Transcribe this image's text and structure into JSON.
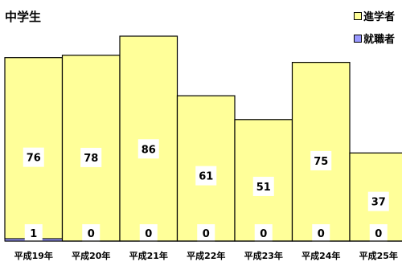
{
  "chart_data": {
    "type": "bar",
    "title": "中学生",
    "categories": [
      "平成19年",
      "平成20年",
      "平成21年",
      "平成22年",
      "平成23年",
      "平成24年",
      "平成25年"
    ],
    "series": [
      {
        "name": "進学者",
        "values": [
          76,
          78,
          86,
          61,
          51,
          75,
          37
        ],
        "color": "#ffff99"
      },
      {
        "name": "就職者",
        "values": [
          1,
          0,
          0,
          0,
          0,
          0,
          0
        ],
        "color": "#9999ff"
      }
    ],
    "stacked": true,
    "ylim": [
      0,
      95
    ],
    "grid": false,
    "legend": "top-right"
  }
}
